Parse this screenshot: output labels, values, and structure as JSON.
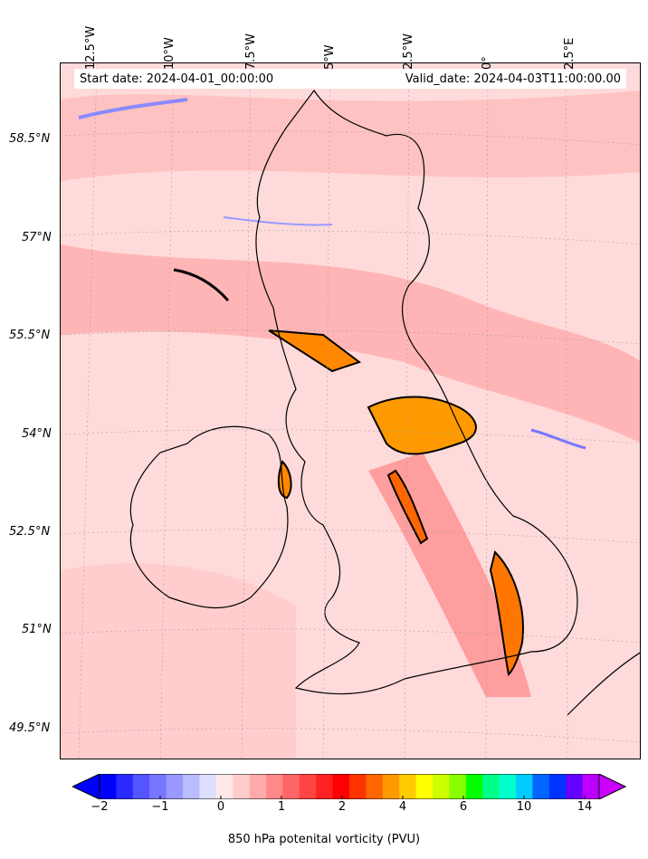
{
  "header": {
    "start_date": "Start date: 2024-04-01_00:00:00",
    "valid_date": "Valid_date: 2024-04-03T11:00:00.00"
  },
  "axes": {
    "longitude_labels": [
      "12.5°W",
      "10°W",
      "7.5°W",
      "5°W",
      "2.5°W",
      "0°",
      "2.5°E"
    ],
    "latitude_labels": [
      "58.5°N",
      "57°N",
      "55.5°N",
      "54°N",
      "52.5°N",
      "51°N",
      "49.5°N"
    ]
  },
  "colorbar": {
    "title": "850 hPa potenital vorticity (PVU)",
    "tick_labels": [
      "−2",
      "−1",
      "0",
      "1",
      "2",
      "4",
      "6",
      "10",
      "14"
    ],
    "colors": [
      "#0000ff",
      "#2a2aff",
      "#5555ff",
      "#7777ff",
      "#9999ff",
      "#bbbbff",
      "#ddddff",
      "#ffe8e8",
      "#ffcccc",
      "#ffaaaa",
      "#ff8888",
      "#ff6666",
      "#ff4444",
      "#ff2222",
      "#ff0000",
      "#ff3300",
      "#ff6600",
      "#ff9900",
      "#ffcc00",
      "#ffff00",
      "#ccff00",
      "#88ff00",
      "#00ff00",
      "#00ff88",
      "#00ffcc",
      "#00ccff",
      "#0066ff",
      "#0033ff",
      "#6600ff",
      "#bb00ff"
    ]
  },
  "map": {
    "field": "850 hPa potential vorticity",
    "background_color": "#ffe6e6"
  }
}
